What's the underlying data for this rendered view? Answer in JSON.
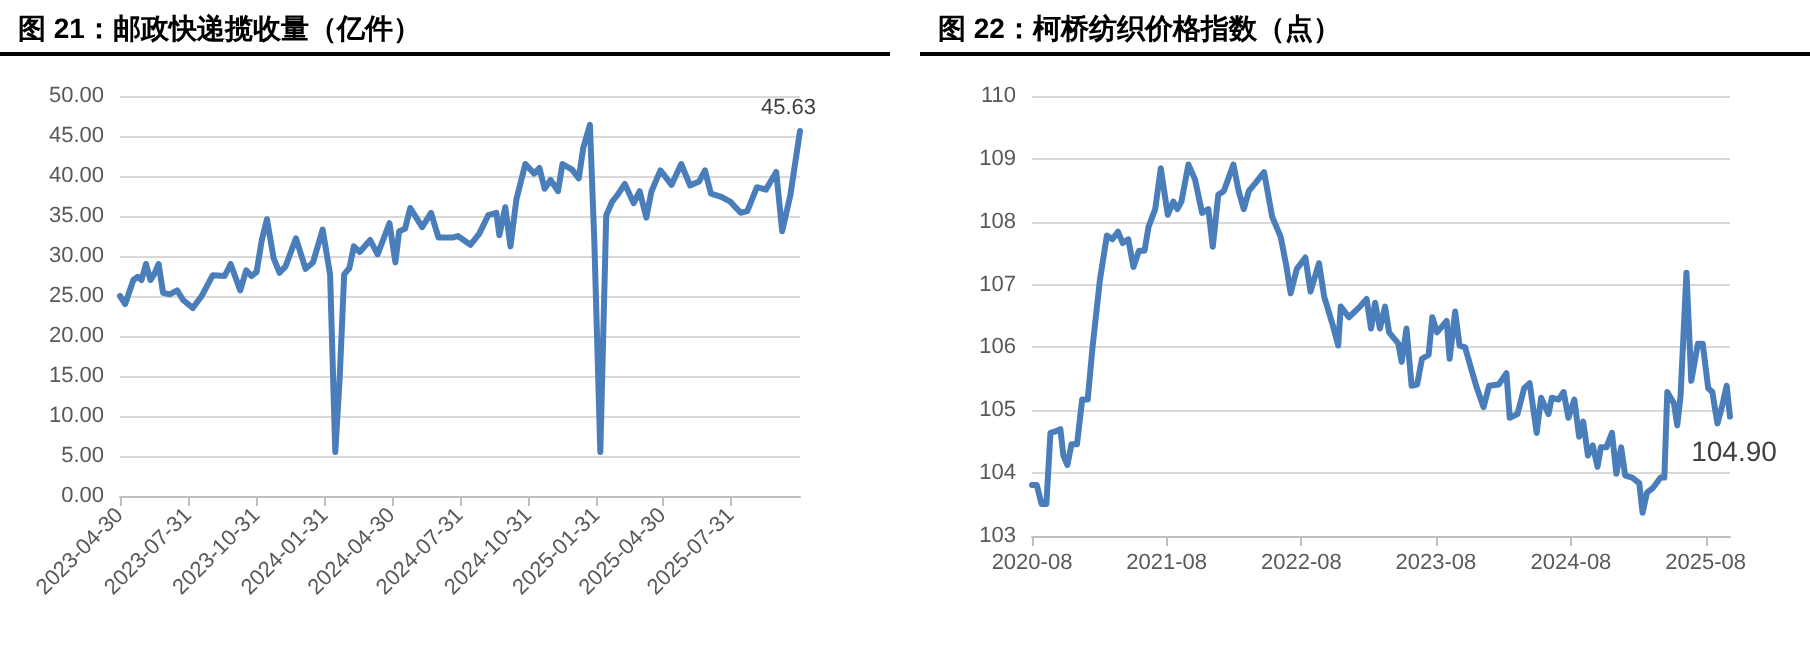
{
  "chart_data": [
    {
      "type": "line",
      "title": "图 21：邮政快递揽收量（亿件）",
      "xlim": [
        "2023-04-30",
        "2025-11-01"
      ],
      "ylim": [
        0,
        50
      ],
      "grid": "y",
      "marker": "none",
      "line_style": "solid",
      "xticks": [
        "2023-04-30",
        "2023-07-31",
        "2023-10-31",
        "2024-01-31",
        "2024-04-30",
        "2024-07-31",
        "2024-10-31",
        "2025-01-31",
        "2025-04-30",
        "2025-07-31"
      ],
      "yticks": [
        {
          "value": 0,
          "label": "0.00"
        },
        {
          "value": 5,
          "label": "5.00"
        },
        {
          "value": 10,
          "label": "10.00"
        },
        {
          "value": 15,
          "label": "15.00"
        },
        {
          "value": 20,
          "label": "20.00"
        },
        {
          "value": 25,
          "label": "25.00"
        },
        {
          "value": 30,
          "label": "30.00"
        },
        {
          "value": 35,
          "label": "35.00"
        },
        {
          "value": 40,
          "label": "40.00"
        },
        {
          "value": 45,
          "label": "45.00"
        },
        {
          "value": 50,
          "label": "50.00"
        }
      ],
      "annotations": [
        {
          "text": "45.63",
          "x": "2025-11-01",
          "y": 45.63
        }
      ],
      "x": [
        "2023-04-30",
        "2023-05-07",
        "2023-05-18",
        "2023-05-24",
        "2023-05-29",
        "2023-06-04",
        "2023-06-10",
        "2023-06-15",
        "2023-06-21",
        "2023-06-27",
        "2023-07-06",
        "2023-07-16",
        "2023-07-24",
        "2023-08-06",
        "2023-08-18",
        "2023-09-02",
        "2023-09-18",
        "2023-09-26",
        "2023-10-09",
        "2023-10-17",
        "2023-10-24",
        "2023-10-31",
        "2023-11-07",
        "2023-11-14",
        "2023-11-23",
        "2023-12-01",
        "2023-12-09",
        "2023-12-23",
        "2024-01-05",
        "2024-01-15",
        "2024-01-28",
        "2024-02-07",
        "2024-02-14",
        "2024-02-20",
        "2024-02-26",
        "2024-03-04",
        "2024-03-10",
        "2024-03-18",
        "2024-04-01",
        "2024-04-11",
        "2024-04-27",
        "2024-05-05",
        "2024-05-10",
        "2024-05-18",
        "2024-05-25",
        "2024-06-10",
        "2024-06-22",
        "2024-07-02",
        "2024-07-21",
        "2024-07-28",
        "2024-08-14",
        "2024-08-26",
        "2024-09-07",
        "2024-09-18",
        "2024-09-22",
        "2024-09-30",
        "2024-10-07",
        "2024-10-15",
        "2024-10-27",
        "2024-11-08",
        "2024-11-15",
        "2024-11-22",
        "2024-11-30",
        "2024-12-10",
        "2024-12-16",
        "2024-12-29",
        "2025-01-07",
        "2025-01-13",
        "2025-01-22",
        "2025-01-28",
        "2025-02-05",
        "2025-02-13",
        "2025-02-21",
        "2025-02-28",
        "2025-03-10",
        "2025-03-22",
        "2025-03-30",
        "2025-04-08",
        "2025-04-15",
        "2025-04-27",
        "2025-05-12",
        "2025-05-25",
        "2025-06-06",
        "2025-06-18",
        "2025-06-26",
        "2025-07-04",
        "2025-07-18",
        "2025-07-30",
        "2025-08-13",
        "2025-08-22",
        "2025-09-04",
        "2025-09-16",
        "2025-09-30",
        "2025-10-08",
        "2025-10-19",
        "2025-11-01"
      ],
      "series": [
        {
          "color": "#4a7ebb",
          "values": [
            25.0,
            24.0,
            27.0,
            27.4,
            27.0,
            29.0,
            27.0,
            27.7,
            29.0,
            25.4,
            25.2,
            25.7,
            24.5,
            23.5,
            25.0,
            27.6,
            27.5,
            29.0,
            25.7,
            28.2,
            27.5,
            28.0,
            32.0,
            34.6,
            29.7,
            27.9,
            28.7,
            32.2,
            28.4,
            29.2,
            33.3,
            27.7,
            5.5,
            14.9,
            27.7,
            28.5,
            31.2,
            30.5,
            32.0,
            30.2,
            34.1,
            29.2,
            33.1,
            33.4,
            36.0,
            33.6,
            35.4,
            32.3,
            32.3,
            32.5,
            31.4,
            32.8,
            35.1,
            35.4,
            32.6,
            36.1,
            31.2,
            37.1,
            41.5,
            40.3,
            41.0,
            38.4,
            39.5,
            38.1,
            41.5,
            40.8,
            39.7,
            43.5,
            46.4,
            31.7,
            5.5,
            35.1,
            36.8,
            37.6,
            39.0,
            36.6,
            38.1,
            34.8,
            38.1,
            40.7,
            38.9,
            41.5,
            38.8,
            39.3,
            40.7,
            37.8,
            37.4,
            36.8,
            35.4,
            35.6,
            38.6,
            38.3,
            40.5,
            33.1,
            37.6,
            45.63
          ]
        }
      ]
    },
    {
      "type": "line",
      "title": "图 22：柯桥纺织价格指数（点）",
      "xlim": [
        "2020-08-01",
        "2025-10-06"
      ],
      "ylim": [
        103,
        110
      ],
      "grid": "y",
      "marker": "none",
      "line_style": "solid",
      "xticks": [
        "2020-08",
        "2021-08",
        "2022-08",
        "2023-08",
        "2024-08",
        "2025-08"
      ],
      "yticks": [
        103,
        104,
        105,
        106,
        107,
        108,
        109,
        110
      ],
      "annotations": [
        {
          "text": "104.90",
          "x": "2025-10-06",
          "y": 104.9
        }
      ],
      "x": [
        "2020-08-01",
        "2020-08-14",
        "2020-08-27",
        "2020-09-09",
        "2020-09-20",
        "2020-10-06",
        "2020-10-17",
        "2020-10-25",
        "2020-11-05",
        "2020-11-16",
        "2020-12-01",
        "2020-12-15",
        "2020-12-30",
        "2021-01-12",
        "2021-02-01",
        "2021-02-20",
        "2021-03-07",
        "2021-03-22",
        "2021-04-04",
        "2021-04-19",
        "2021-05-03",
        "2021-05-18",
        "2021-06-02",
        "2021-06-13",
        "2021-07-01",
        "2021-07-16",
        "2021-08-04",
        "2021-08-19",
        "2021-08-30",
        "2021-09-10",
        "2021-09-29",
        "2021-10-17",
        "2021-11-05",
        "2021-11-22",
        "2021-12-04",
        "2021-12-19",
        "2022-01-03",
        "2022-01-29",
        "2022-02-12",
        "2022-02-26",
        "2022-03-12",
        "2022-03-29",
        "2022-04-22",
        "2022-05-14",
        "2022-06-06",
        "2022-06-21",
        "2022-07-03",
        "2022-07-20",
        "2022-08-12",
        "2022-08-26",
        "2022-09-18",
        "2022-10-02",
        "2022-10-25",
        "2022-11-09",
        "2022-11-16",
        "2022-12-08",
        "2023-01-07",
        "2023-01-25",
        "2023-02-06",
        "2023-02-17",
        "2023-03-02",
        "2023-03-16",
        "2023-03-27",
        "2023-04-21",
        "2023-04-30",
        "2023-05-13",
        "2023-05-27",
        "2023-06-11",
        "2023-06-24",
        "2023-07-12",
        "2023-07-22",
        "2023-08-04",
        "2023-08-30",
        "2023-09-07",
        "2023-09-22",
        "2023-10-04",
        "2023-10-19",
        "2023-11-05",
        "2023-11-20",
        "2023-12-08",
        "2023-12-23",
        "2024-01-18",
        "2024-02-08",
        "2024-02-17",
        "2024-03-09",
        "2024-03-27",
        "2024-04-11",
        "2024-04-30",
        "2024-05-12",
        "2024-06-01",
        "2024-06-10",
        "2024-06-28",
        "2024-07-12",
        "2024-07-25",
        "2024-08-10",
        "2024-08-23",
        "2024-09-03",
        "2024-09-16",
        "2024-09-29",
        "2024-10-12",
        "2024-10-21",
        "2024-11-05",
        "2024-11-20",
        "2024-12-02",
        "2024-12-15",
        "2024-12-26",
        "2025-01-14",
        "2025-02-02",
        "2025-02-11",
        "2025-02-23",
        "2025-03-12",
        "2025-04-01",
        "2025-04-11",
        "2025-04-19",
        "2025-05-07",
        "2025-05-16",
        "2025-05-25",
        "2025-06-10",
        "2025-06-23",
        "2025-07-11",
        "2025-07-24",
        "2025-08-08",
        "2025-08-19",
        "2025-09-02",
        "2025-09-14",
        "2025-09-27",
        "2025-10-06"
      ],
      "series": [
        {
          "color": "#4a7ebb",
          "values": [
            103.81,
            103.81,
            103.51,
            103.51,
            104.64,
            104.67,
            104.7,
            104.28,
            104.13,
            104.46,
            104.46,
            105.17,
            105.17,
            106.0,
            107.07,
            107.78,
            107.72,
            107.84,
            107.66,
            107.72,
            107.28,
            107.54,
            107.54,
            107.92,
            108.2,
            108.85,
            108.11,
            108.32,
            108.2,
            108.32,
            108.91,
            108.67,
            108.14,
            108.2,
            107.6,
            108.43,
            108.49,
            108.91,
            108.49,
            108.2,
            108.49,
            108.61,
            108.79,
            108.08,
            107.76,
            107.31,
            106.86,
            107.25,
            107.43,
            106.89,
            107.34,
            106.81,
            106.36,
            106.03,
            106.65,
            106.48,
            106.65,
            106.77,
            106.3,
            106.71,
            106.3,
            106.65,
            106.24,
            106.06,
            105.77,
            106.3,
            105.39,
            105.41,
            105.82,
            105.88,
            106.48,
            106.24,
            106.42,
            105.82,
            106.57,
            106.03,
            106.0,
            105.65,
            105.35,
            105.05,
            105.39,
            105.41,
            105.59,
            104.88,
            104.94,
            105.35,
            105.43,
            104.64,
            105.2,
            104.94,
            105.2,
            105.17,
            105.29,
            104.88,
            105.17,
            104.58,
            104.82,
            104.28,
            104.44,
            104.1,
            104.41,
            104.41,
            104.64,
            103.99,
            104.41,
            103.96,
            103.93,
            103.84,
            103.37,
            103.69,
            103.77,
            103.93,
            103.93,
            105.29,
            105.11,
            104.76,
            105.23,
            107.19,
            105.47,
            106.06,
            106.06,
            105.35,
            105.29,
            104.79,
            105.05,
            105.39,
            104.9
          ]
        }
      ]
    }
  ]
}
